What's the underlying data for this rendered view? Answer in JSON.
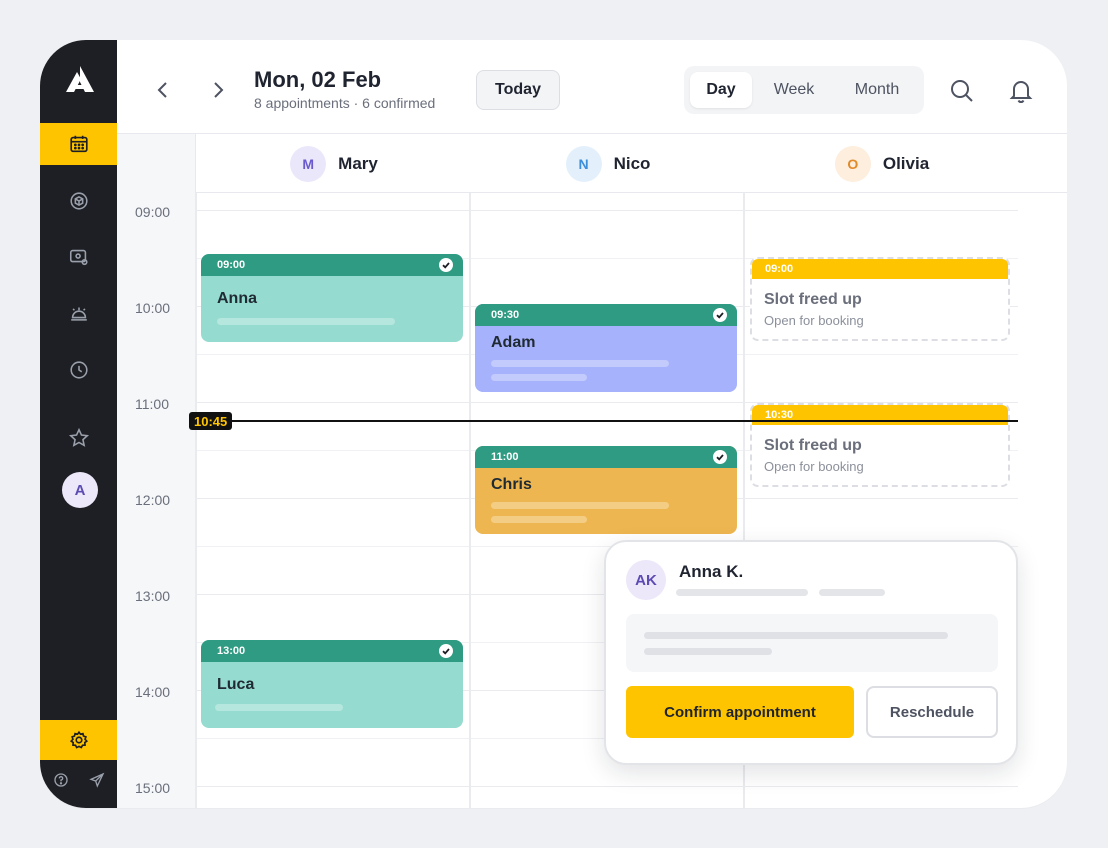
{
  "header": {
    "date_title": "Mon, 02 Feb",
    "subtitle": "8 appointments · 6 confirmed",
    "today_label": "Today",
    "views": [
      "Day",
      "Week",
      "Month"
    ],
    "active_view": "Day"
  },
  "sidebar": {
    "items": [
      "calendar-icon",
      "cube-icon",
      "card-settings-icon",
      "service-bell-icon",
      "clock-icon",
      "star-icon"
    ],
    "active_item": "calendar-icon",
    "avatar_initial": "A",
    "bottom_items": [
      "settings-icon",
      "help-icon",
      "send-icon"
    ]
  },
  "resources": [
    {
      "initial": "M",
      "name": "Mary",
      "avatar_bg": "#ebe7fb",
      "avatar_fg": "#6a5acd"
    },
    {
      "initial": "N",
      "name": "Nico",
      "avatar_bg": "#e3f0fb",
      "avatar_fg": "#3d8fd9"
    },
    {
      "initial": "O",
      "name": "Olivia",
      "avatar_bg": "#fdeedd",
      "avatar_fg": "#e08a2a"
    }
  ],
  "times": [
    "09:00",
    "10:00",
    "11:00",
    "12:00",
    "13:00",
    "14:00",
    "15:00"
  ],
  "now_label": "10:45",
  "appointments": [
    {
      "time": "09:00",
      "name": "Anna",
      "bar_color": "#2f9b82",
      "body_color": "#96dbcf",
      "confirmed": true
    },
    {
      "time": "09:30",
      "name": "Adam",
      "bar_color": "#2f9b82",
      "body_color": "#a6b2fb",
      "confirmed": true
    },
    {
      "time": "11:00",
      "name": "Chris",
      "bar_color": "#2f9b82",
      "body_color": "#eeb650",
      "confirmed": true
    },
    {
      "time": "13:00",
      "name": "Luca",
      "bar_color": "#2f9b82",
      "body_color": "#96dbcf",
      "confirmed": true
    }
  ],
  "slots": [
    {
      "time": "09:00",
      "title": "Slot freed up",
      "subtitle": "Open for booking"
    },
    {
      "time": "10:30",
      "title": "Slot freed up",
      "subtitle": "Open for booking"
    }
  ],
  "popover": {
    "initials": "AK",
    "name": "Anna K.",
    "confirm_label": "Confirm appointment",
    "reschedule_label": "Reschedule"
  },
  "colors": {
    "accent": "#ffc400",
    "sidebar": "#1e1f24",
    "confirmed_bar": "#2f9b82"
  }
}
